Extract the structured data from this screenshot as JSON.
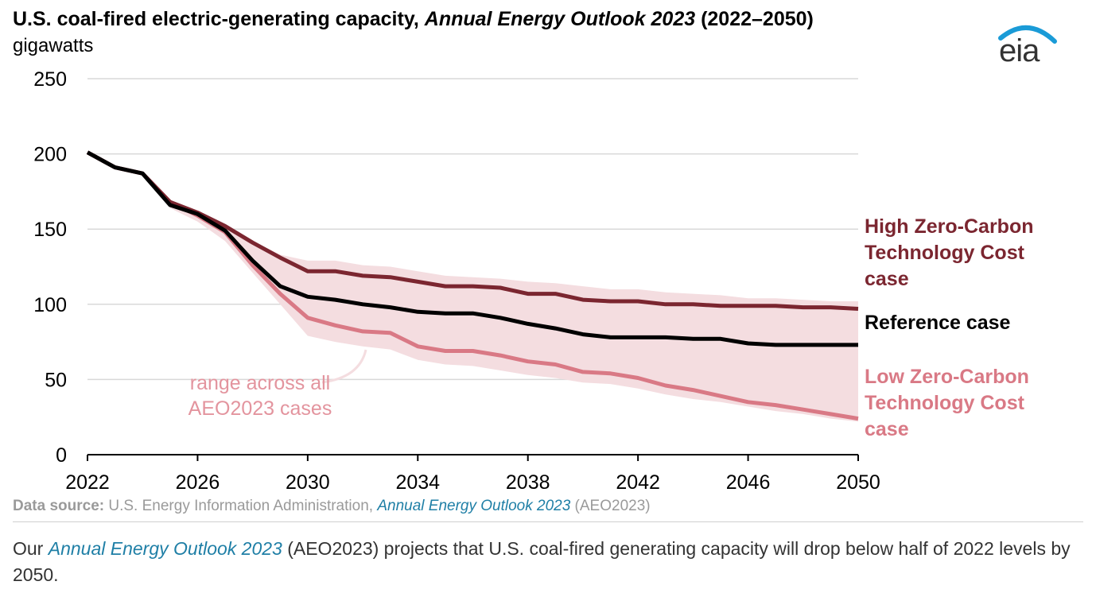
{
  "header": {
    "title_part1": "U.S. coal-fired electric-generating capacity, ",
    "title_italic": "Annual Energy Outlook 2023",
    "title_part2": " (2022–2050)",
    "units": "gigawatts"
  },
  "logo": {
    "text": "eia",
    "icon": "eia-logo-icon",
    "colors": {
      "arc": "#1a9bd7",
      "text": "#333333"
    }
  },
  "chart_data": {
    "type": "line",
    "title": "U.S. coal-fired electric-generating capacity, Annual Energy Outlook 2023 (2022–2050)",
    "ylabel": "gigawatts",
    "xlabel": "",
    "xlim": [
      2022,
      2050
    ],
    "ylim": [
      0,
      250
    ],
    "x_ticks": [
      "2022",
      "2026",
      "2030",
      "2034",
      "2038",
      "2042",
      "2046",
      "2050"
    ],
    "y_ticks": [
      "0",
      "50",
      "100",
      "150",
      "200",
      "250"
    ],
    "grid": "horizontal",
    "x": [
      2022,
      2023,
      2024,
      2025,
      2026,
      2027,
      2028,
      2029,
      2030,
      2031,
      2032,
      2033,
      2034,
      2035,
      2036,
      2037,
      2038,
      2039,
      2040,
      2041,
      2042,
      2043,
      2044,
      2045,
      2046,
      2047,
      2048,
      2049,
      2050
    ],
    "series": [
      {
        "name": "High Zero-Carbon Technology Cost case",
        "label_lines": [
          "High Zero-Carbon",
          "Technology Cost",
          "case"
        ],
        "color": "#7b2630",
        "values": [
          201,
          191,
          187,
          168,
          161,
          152,
          141,
          131,
          122,
          122,
          119,
          118,
          115,
          112,
          112,
          111,
          107,
          107,
          103,
          102,
          102,
          100,
          100,
          99,
          99,
          99,
          98,
          98,
          97
        ]
      },
      {
        "name": "Reference case",
        "label_lines": [
          "Reference case"
        ],
        "color": "#000000",
        "values": [
          201,
          191,
          187,
          166,
          160,
          149,
          129,
          112,
          105,
          103,
          100,
          98,
          95,
          94,
          94,
          91,
          87,
          84,
          80,
          78,
          78,
          78,
          77,
          77,
          74,
          73,
          73,
          73,
          73
        ]
      },
      {
        "name": "Low Zero-Carbon Technology Cost case",
        "label_lines": [
          "Low Zero-Carbon",
          "Technology Cost",
          "case"
        ],
        "color": "#d97985",
        "values": [
          201,
          191,
          187,
          168,
          159,
          148,
          126,
          107,
          91,
          86,
          82,
          81,
          72,
          69,
          69,
          66,
          62,
          60,
          55,
          54,
          51,
          46,
          43,
          39,
          35,
          33,
          30,
          27,
          24
        ]
      }
    ],
    "range_band": {
      "name": "range across all AEO2023 cases",
      "label_lines": [
        "range across all",
        "AEO2023 cases"
      ],
      "color": "#f4dde0",
      "label_color": "#e3949e",
      "upper": [
        201,
        191,
        187,
        169,
        162,
        153,
        142,
        133,
        129,
        129,
        126,
        125,
        122,
        119,
        118,
        117,
        115,
        114,
        112,
        110,
        110,
        108,
        107,
        106,
        104,
        104,
        103,
        102,
        102
      ],
      "lower": [
        201,
        191,
        187,
        164,
        155,
        142,
        121,
        100,
        79,
        75,
        72,
        70,
        63,
        60,
        59,
        56,
        53,
        51,
        48,
        47,
        44,
        40,
        37,
        35,
        32,
        29,
        27,
        24,
        22
      ]
    }
  },
  "footer": {
    "source_label": "Data source:",
    "source_text": " U.S. Energy Information Administration, ",
    "source_link": "Annual Energy Outlook 2023",
    "source_suffix": " (AEO2023)",
    "caption_prefix": "Our ",
    "caption_link": "Annual Energy Outlook 2023",
    "caption_text": " (AEO2023) projects that U.S. coal-fired generating capacity will drop below half of 2022 levels by 2050."
  }
}
